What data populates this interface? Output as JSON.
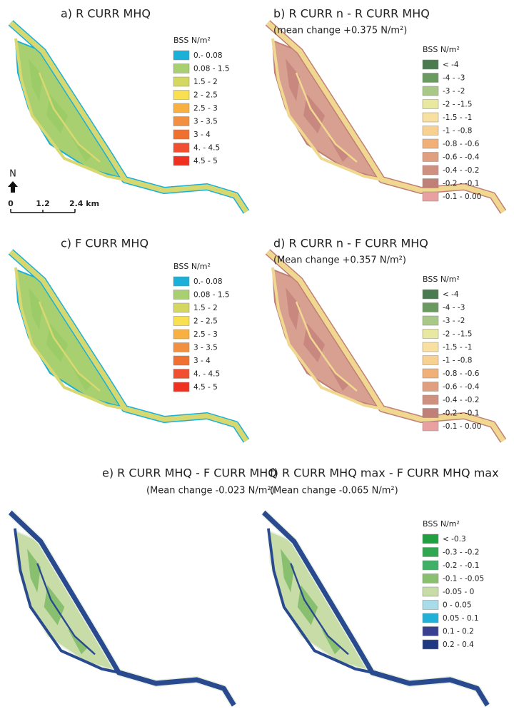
{
  "panels": [
    {
      "title": "a) R CURR MHQ",
      "legend": {
        "title": "BSS N/m²",
        "items": [
          {
            "label": "0.- 0.08",
            "color": "#1ab0d8"
          },
          {
            "label": "0.08 - 1.5",
            "color": "#a8d070"
          },
          {
            "label": "1.5 - 2",
            "color": "#d4d860"
          },
          {
            "label": "2 - 2.5",
            "color": "#f8e050"
          },
          {
            "label": "2.5 - 3",
            "color": "#f8b040"
          },
          {
            "label": "3 - 3.5",
            "color": "#f09040"
          },
          {
            "label": "3 - 4",
            "color": "#f07030"
          },
          {
            "label": "4. - 4.5",
            "color": "#f05030"
          },
          {
            "label": "4.5 - 5",
            "color": "#f03020"
          }
        ]
      }
    },
    {
      "title": "b) R CURR n - R CURR MHQ",
      "subtitle": "(mean change +0.375 N/m²)",
      "legend": {
        "title": "BSS N/m²",
        "items": [
          {
            "label": "< -4",
            "color": "#4a7a50"
          },
          {
            "label": "-4 - -3",
            "color": "#6a9a60"
          },
          {
            "label": "-3 - -2",
            "color": "#a8c888"
          },
          {
            "label": "-2 - -1.5",
            "color": "#e8e8a0"
          },
          {
            "label": "-1.5 - -1",
            "color": "#f8e0a0"
          },
          {
            "label": "-1 - -0.8",
            "color": "#f8d090"
          },
          {
            "label": "-0.8 - -0.6",
            "color": "#f0b078"
          },
          {
            "label": "-0.6 - -0.4",
            "color": "#e0a080"
          },
          {
            "label": "-0.4 - -0.2",
            "color": "#d09080"
          },
          {
            "label": "-0.2 - -0.1",
            "color": "#c08078"
          },
          {
            "label": "-0.1 - 0.00",
            "color": "#e8a0a0"
          }
        ]
      }
    },
    {
      "title": "c) F CURR MHQ",
      "legend": {
        "title": "BSS N/m²",
        "items": [
          {
            "label": "0.- 0.08",
            "color": "#1ab0d8"
          },
          {
            "label": "0.08 - 1.5",
            "color": "#a8d070"
          },
          {
            "label": "1.5 - 2",
            "color": "#d4d860"
          },
          {
            "label": "2 - 2.5",
            "color": "#f8e050"
          },
          {
            "label": "2.5 - 3",
            "color": "#f8b040"
          },
          {
            "label": "3 - 3.5",
            "color": "#f09040"
          },
          {
            "label": "3 - 4",
            "color": "#f07030"
          },
          {
            "label": "4. - 4.5",
            "color": "#f05030"
          },
          {
            "label": "4.5 - 5",
            "color": "#f03020"
          }
        ]
      }
    },
    {
      "title": "d) R CURR n - F CURR MHQ",
      "subtitle": "(Mean change +0.357 N/m²)",
      "legend": {
        "title": "BSS N/m²",
        "items": [
          {
            "label": "< -4",
            "color": "#4a7a50"
          },
          {
            "label": "-4 - -3",
            "color": "#6a9a60"
          },
          {
            "label": "-3 - -2",
            "color": "#a8c888"
          },
          {
            "label": "-2 - -1.5",
            "color": "#e8e8a0"
          },
          {
            "label": "-1.5 - -1",
            "color": "#f8e0a0"
          },
          {
            "label": "-1 - -0.8",
            "color": "#f8d090"
          },
          {
            "label": "-0.8 - -0.6",
            "color": "#f0b078"
          },
          {
            "label": "-0.6 - -0.4",
            "color": "#e0a080"
          },
          {
            "label": "-0.4 - -0.2",
            "color": "#d09080"
          },
          {
            "label": "-0.2 - -0.1",
            "color": "#c08078"
          },
          {
            "label": "-0.1 - 0.00",
            "color": "#e8a0a0"
          }
        ]
      }
    },
    {
      "title": "e) R CURR MHQ - F CURR MHQ",
      "subtitle": "(Mean change -0.023 N/m²)"
    },
    {
      "title": "f) R CURR MHQ max - F CURR MHQ max",
      "subtitle": "(Mean change -0.065 N/m²)",
      "legend": {
        "title": "BSS N/m²",
        "items": [
          {
            "label": "< -0.3",
            "color": "#20a040"
          },
          {
            "label": "-0.3 - -0.2",
            "color": "#30a850"
          },
          {
            "label": "-0.2 - -0.1",
            "color": "#40b068"
          },
          {
            "label": "-0.1 - -0.05",
            "color": "#88c070"
          },
          {
            "label": "-0.05 - 0",
            "color": "#c8dca8"
          },
          {
            "label": "0 - 0.05",
            "color": "#a8dce8"
          },
          {
            "label": "0.05 - 0.1",
            "color": "#20b0d8"
          },
          {
            "label": "0.1 - 0.2",
            "color": "#3a4090"
          },
          {
            "label": "0.2 - 0.4",
            "color": "#203880"
          }
        ]
      }
    }
  ],
  "north": "N",
  "scale_bar": [
    "0",
    "1.2",
    "2.4 km"
  ]
}
